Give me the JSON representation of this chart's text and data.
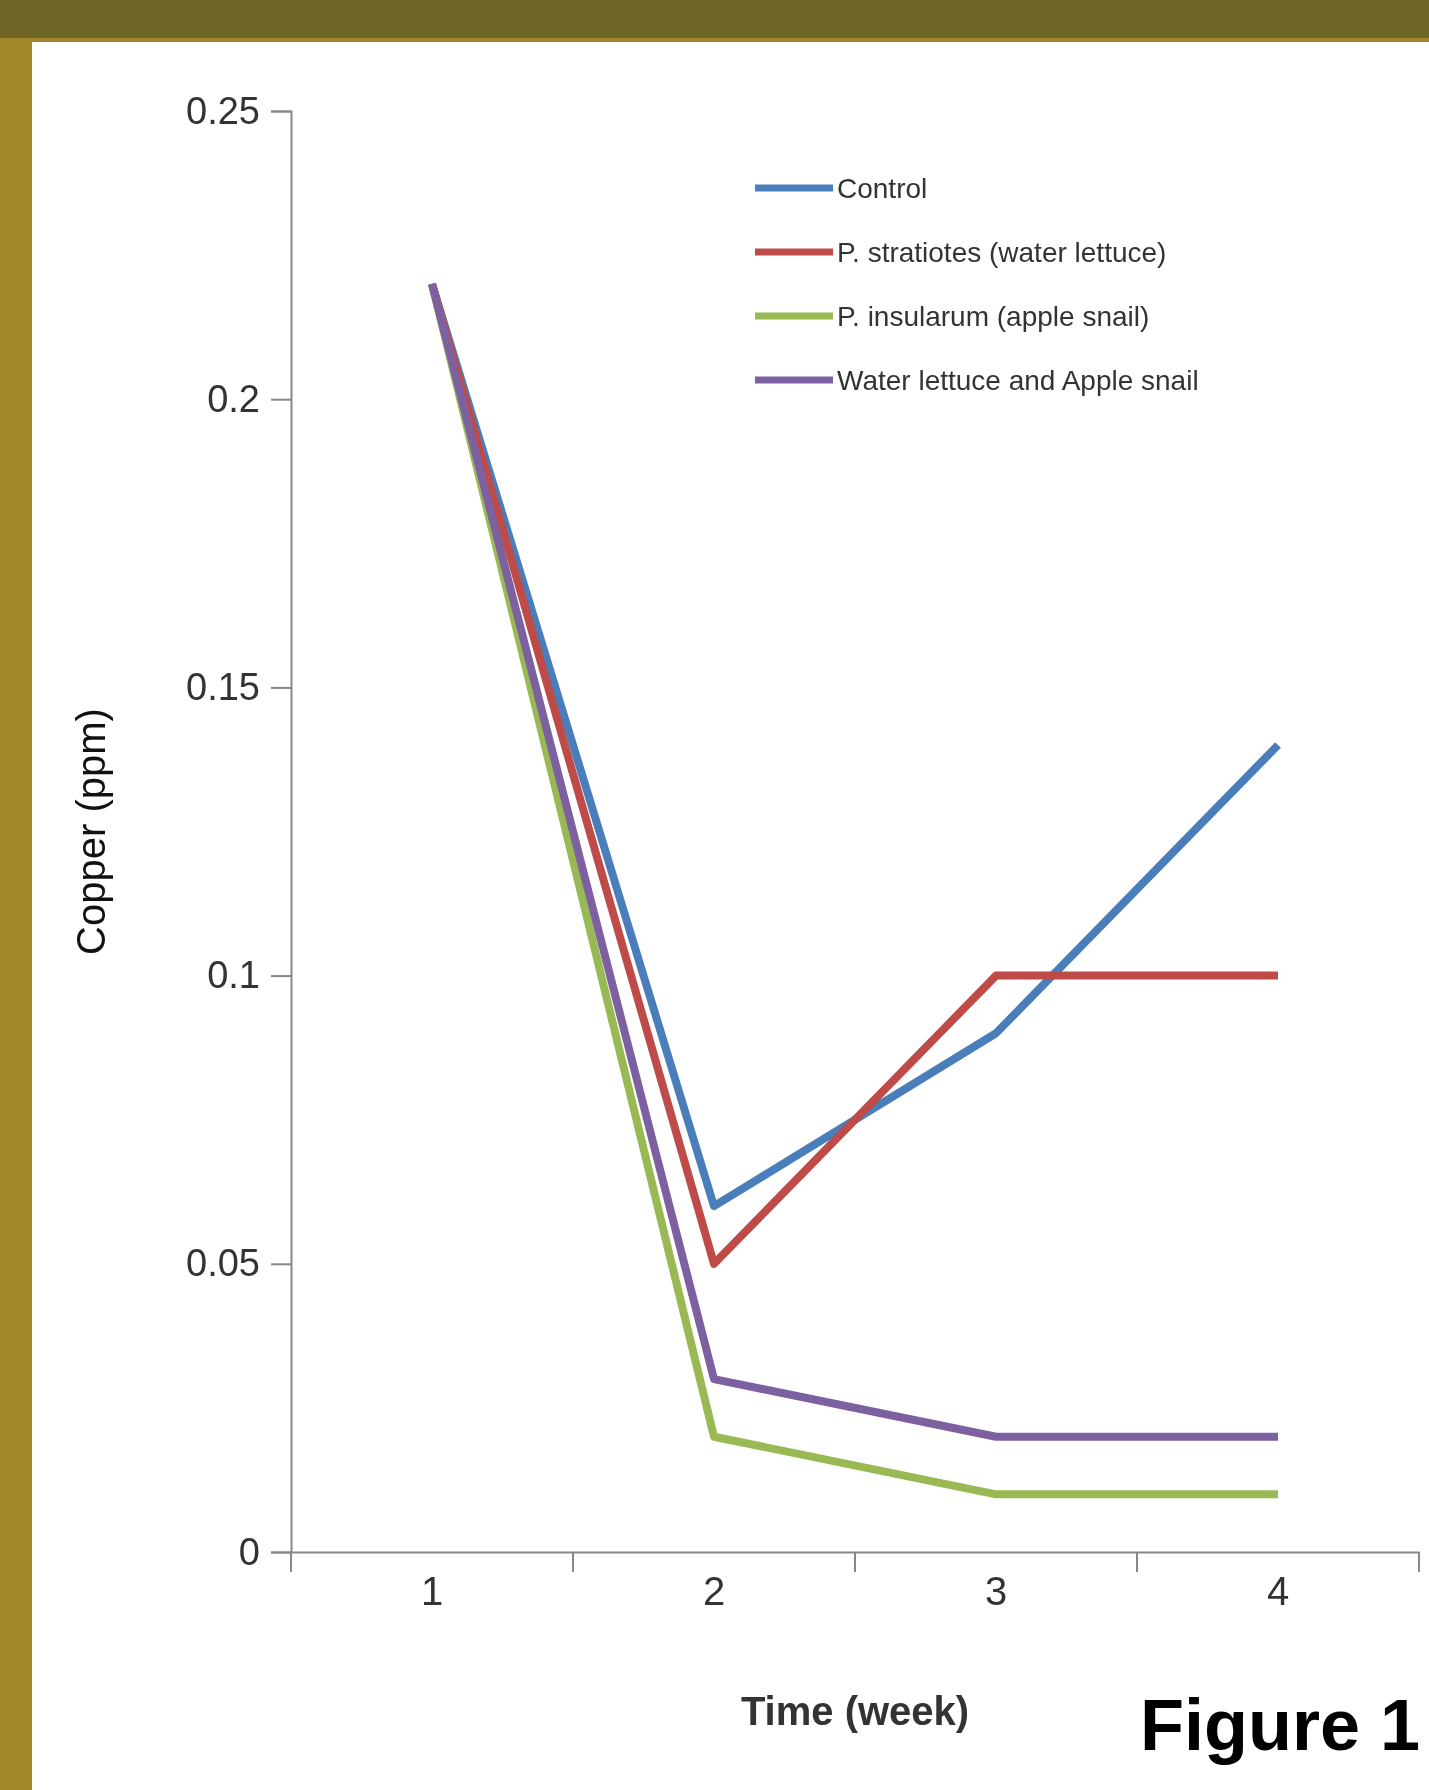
{
  "chart_data": {
    "type": "line",
    "xlabel": "Time (week)",
    "ylabel": "Copper (ppm)",
    "categories": [
      "1",
      "2",
      "3",
      "4"
    ],
    "series": [
      {
        "name": "Control",
        "color": "#4a7ebb",
        "values": [
          0.22,
          0.06,
          0.09,
          0.14
        ]
      },
      {
        "name": "P. stratiotes (water lettuce)",
        "color": "#be4b48",
        "values": [
          0.22,
          0.05,
          0.1,
          0.1
        ]
      },
      {
        "name": "P. insularum (apple snail)",
        "color": "#98b954",
        "values": [
          0.22,
          0.02,
          0.01,
          0.01
        ]
      },
      {
        "name": "Water lettuce and Apple snail",
        "color": "#7d60a0",
        "values": [
          0.22,
          0.03,
          0.02,
          0.02
        ]
      }
    ],
    "ylim": [
      0,
      0.25
    ],
    "yticks": [
      0,
      0.05,
      0.1,
      0.15,
      0.2,
      0.25
    ],
    "grid": false,
    "legend": "top right",
    "marker": "none",
    "line_style": "solid",
    "annotations": [
      "Figure 1"
    ]
  }
}
